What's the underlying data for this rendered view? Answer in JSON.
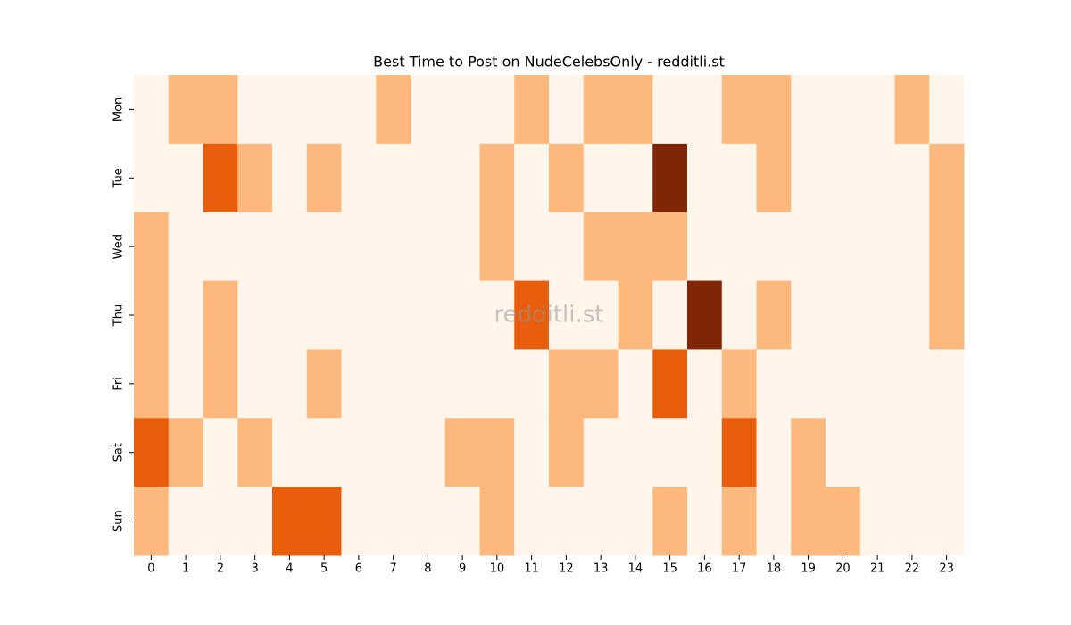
{
  "chart_data": {
    "type": "heatmap",
    "title": "Best Time to Post on NudeCelebsOnly - redditli.st",
    "watermark": "redditli.st",
    "x": [
      0,
      1,
      2,
      3,
      4,
      5,
      6,
      7,
      8,
      9,
      10,
      11,
      12,
      13,
      14,
      15,
      16,
      17,
      18,
      19,
      20,
      21,
      22,
      23
    ],
    "y": [
      "Mon",
      "Tue",
      "Wed",
      "Thu",
      "Fri",
      "Sat",
      "Sun"
    ],
    "values": [
      [
        0,
        1,
        1,
        0,
        0,
        0,
        0,
        1,
        0,
        0,
        0,
        1,
        0,
        1,
        1,
        0,
        0,
        1,
        1,
        0,
        0,
        0,
        1,
        0
      ],
      [
        0,
        0,
        2,
        1,
        0,
        1,
        0,
        0,
        0,
        0,
        1,
        0,
        1,
        0,
        0,
        3,
        0,
        0,
        1,
        0,
        0,
        0,
        0,
        1
      ],
      [
        1,
        0,
        0,
        0,
        0,
        0,
        0,
        0,
        0,
        0,
        1,
        0,
        0,
        1,
        1,
        1,
        0,
        0,
        0,
        0,
        0,
        0,
        0,
        1
      ],
      [
        1,
        0,
        1,
        0,
        0,
        0,
        0,
        0,
        0,
        0,
        0,
        2,
        0,
        0,
        1,
        0,
        3,
        0,
        1,
        0,
        0,
        0,
        0,
        1
      ],
      [
        1,
        0,
        1,
        0,
        0,
        1,
        0,
        0,
        0,
        0,
        0,
        0,
        1,
        1,
        0,
        2,
        0,
        1,
        0,
        0,
        0,
        0,
        0,
        0
      ],
      [
        2,
        1,
        0,
        1,
        0,
        0,
        0,
        0,
        0,
        1,
        1,
        0,
        1,
        0,
        0,
        0,
        0,
        2,
        0,
        1,
        0,
        0,
        0,
        0
      ],
      [
        1,
        0,
        0,
        0,
        2,
        2,
        0,
        0,
        0,
        0,
        1,
        0,
        0,
        0,
        0,
        1,
        0,
        1,
        0,
        1,
        1,
        0,
        0,
        0
      ]
    ],
    "vlim": [
      0,
      3
    ],
    "colorscale": [
      "#fff5eb",
      "#fdb97d",
      "#e95e0d",
      "#7f2704"
    ]
  }
}
